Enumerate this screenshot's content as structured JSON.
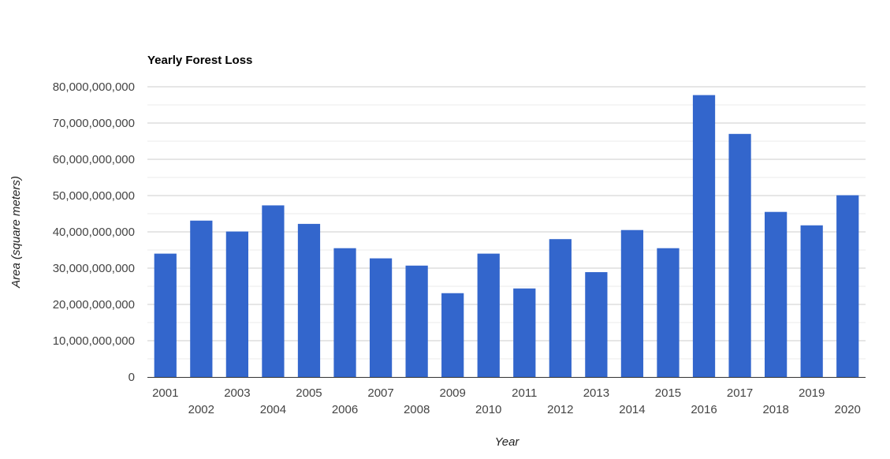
{
  "chart_data": {
    "type": "bar",
    "title": "Yearly Forest Loss",
    "xlabel": "Year",
    "ylabel": "Area (square meters)",
    "ylim": [
      0,
      80000000000
    ],
    "yticks": [
      0,
      10000000000,
      20000000000,
      30000000000,
      40000000000,
      50000000000,
      60000000000,
      70000000000,
      80000000000
    ],
    "ytick_labels": [
      "0",
      "10,000,000,000",
      "20,000,000,000",
      "30,000,000,000",
      "40,000,000,000",
      "50,000,000,000",
      "60,000,000,000",
      "70,000,000,000",
      "80,000,000,000"
    ],
    "grid": true,
    "legend": "none",
    "bar_color": "#3366cc",
    "categories": [
      "2001",
      "2002",
      "2003",
      "2004",
      "2005",
      "2006",
      "2007",
      "2008",
      "2009",
      "2010",
      "2011",
      "2012",
      "2013",
      "2014",
      "2015",
      "2016",
      "2017",
      "2018",
      "2019",
      "2020"
    ],
    "values": [
      34000000000,
      43100000000,
      40100000000,
      47300000000,
      42200000000,
      35500000000,
      32700000000,
      30700000000,
      23100000000,
      34000000000,
      24400000000,
      38000000000,
      28900000000,
      40500000000,
      35500000000,
      77700000000,
      67000000000,
      45500000000,
      41800000000,
      50100000000
    ]
  }
}
